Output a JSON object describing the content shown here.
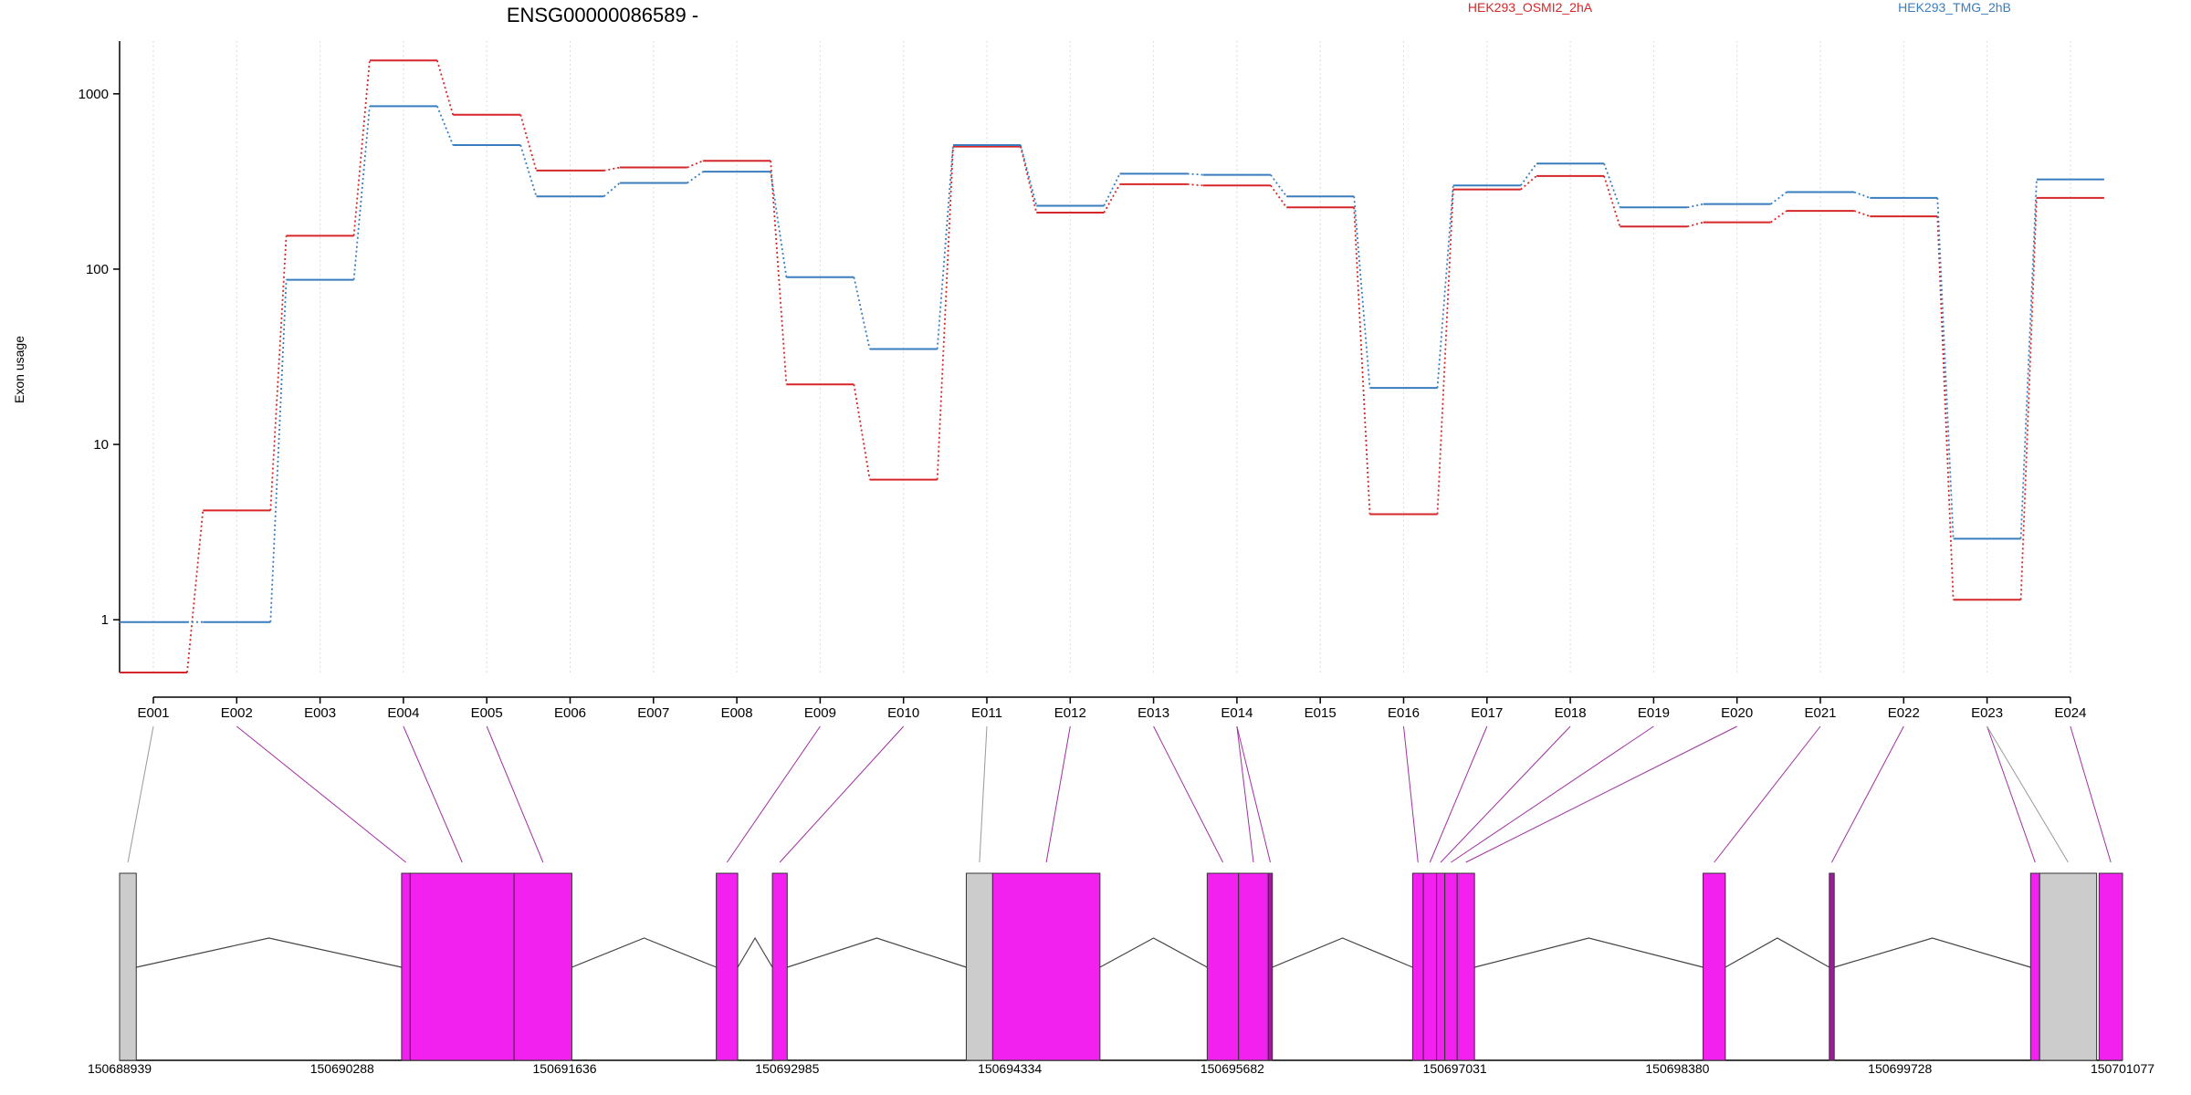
{
  "chart_data": {
    "type": "line",
    "title": "ENSG00000086589 -",
    "xlabel": "",
    "ylabel": "Exon usage",
    "y_scale": "log",
    "ylim": [
      0.5,
      2000
    ],
    "y_ticks": [
      1,
      10,
      100,
      1000
    ],
    "y_tick_labels": [
      "1",
      "10",
      "100",
      "1000"
    ],
    "grid": "vertical-dotted",
    "legend_position": "top-right",
    "categories": [
      "E001",
      "E002",
      "E003",
      "E004",
      "E005",
      "E006",
      "E007",
      "E008",
      "E009",
      "E010",
      "E011",
      "E012",
      "E013",
      "E014",
      "E015",
      "E016",
      "E017",
      "E018",
      "E019",
      "E020",
      "E021",
      "E022",
      "E023",
      "E024"
    ],
    "series": [
      {
        "name": "HEK293_OSMI2_2hA",
        "color": "#d62728",
        "values": [
          0.5,
          4.2,
          155,
          1550,
          760,
          365,
          380,
          415,
          22,
          6.3,
          500,
          210,
          305,
          300,
          225,
          4,
          285,
          340,
          175,
          185,
          215,
          200,
          1.3,
          255
        ]
      },
      {
        "name": "HEK293_TMG_2hB",
        "color": "#3a7dbf",
        "values": [
          0.97,
          0.97,
          87,
          850,
          510,
          260,
          310,
          360,
          90,
          35,
          510,
          230,
          350,
          345,
          260,
          21,
          300,
          400,
          225,
          235,
          275,
          255,
          2.9,
          325
        ]
      }
    ],
    "gene_model": {
      "coordinate_range": [
        150688939,
        150701077
      ],
      "coordinate_ticks": [
        "150688939",
        "150690288",
        "150691636",
        "150692985",
        "150694334",
        "150695682",
        "150697031",
        "150698380",
        "150699728",
        "150701077"
      ],
      "exons": [
        {
          "start": 150688939,
          "end": 150689040,
          "kind": "noncoding",
          "bin": 1
        },
        {
          "start": 150690648,
          "end": 150690700,
          "kind": "coding",
          "bin": 2
        },
        {
          "start": 150690700,
          "end": 150691330,
          "kind": "coding",
          "bin": 4
        },
        {
          "start": 150691330,
          "end": 150691680,
          "kind": "coding",
          "bin": 5
        },
        {
          "start": 150692555,
          "end": 150692685,
          "kind": "coding",
          "bin": 9
        },
        {
          "start": 150692895,
          "end": 150692985,
          "kind": "coding",
          "bin": 10
        },
        {
          "start": 150694070,
          "end": 150694230,
          "kind": "noncoding",
          "bin": 11
        },
        {
          "start": 150694230,
          "end": 150694880,
          "kind": "coding",
          "bin": 12
        },
        {
          "start": 150695530,
          "end": 150695720,
          "kind": "coding",
          "bin": 13
        },
        {
          "start": 150695720,
          "end": 150695900,
          "kind": "coding",
          "bin": 14
        },
        {
          "start": 150695900,
          "end": 150695925,
          "kind": "coding-dark",
          "bin": 14
        },
        {
          "start": 150696775,
          "end": 150696840,
          "kind": "coding",
          "bin": 16
        },
        {
          "start": 150696840,
          "end": 150696920,
          "kind": "coding",
          "bin": 17
        },
        {
          "start": 150696920,
          "end": 150696970,
          "kind": "coding",
          "bin": 18
        },
        {
          "start": 150696970,
          "end": 150697045,
          "kind": "coding",
          "bin": 19
        },
        {
          "start": 150697045,
          "end": 150697150,
          "kind": "coding",
          "bin": 20
        },
        {
          "start": 150698535,
          "end": 150698670,
          "kind": "coding",
          "bin": 21
        },
        {
          "start": 150699300,
          "end": 150699330,
          "kind": "coding-dark",
          "bin": 22
        },
        {
          "start": 150700520,
          "end": 150700575,
          "kind": "coding",
          "bin": 23
        },
        {
          "start": 150700575,
          "end": 150700920,
          "kind": "noncoding",
          "bin": 23
        },
        {
          "start": 150700935,
          "end": 150701077,
          "kind": "coding",
          "bin": 24
        }
      ],
      "colors": {
        "coding": "#f221ef",
        "coding-dark": "#9b1d9c",
        "noncoding": "#cccccc",
        "connector": "#a030a0",
        "connector_noncoding": "#999999",
        "intron": "#444444"
      }
    }
  }
}
